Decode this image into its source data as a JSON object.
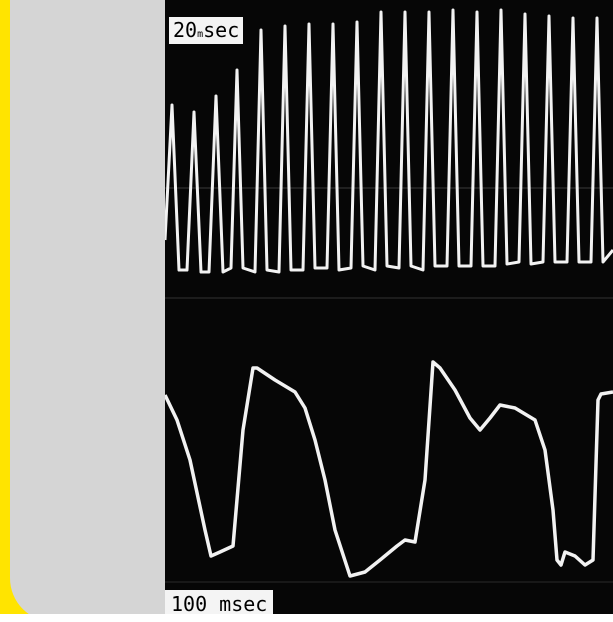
{
  "top_label": {
    "value": "20",
    "unit_small": "m",
    "unit": "sec"
  },
  "bottom_label": "100 msec",
  "colors": {
    "accent_bar": "#ffe400",
    "side_panel": "#d5d5d5",
    "scope_background": "#060606",
    "trace": "#f2f2f2"
  }
}
